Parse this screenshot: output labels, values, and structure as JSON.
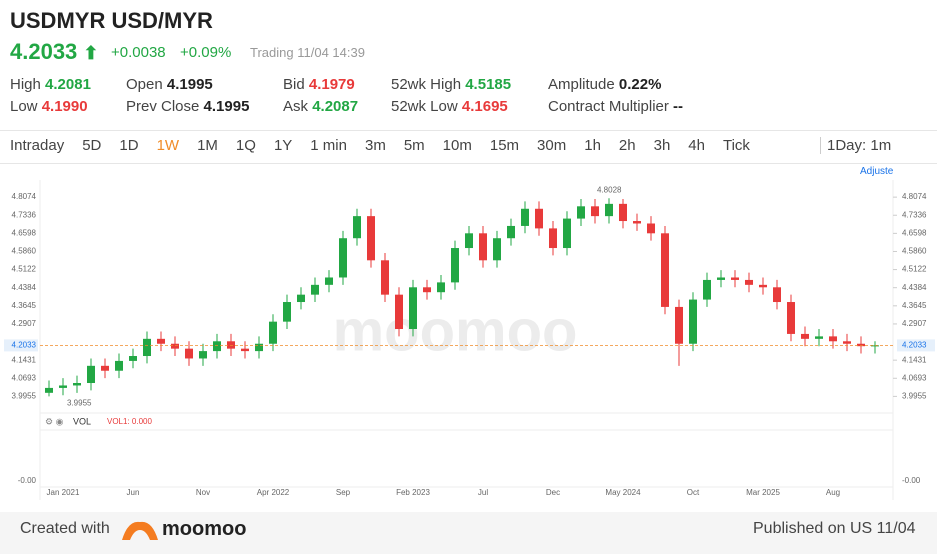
{
  "quote": {
    "symbol": "USDMYR USD/MYR",
    "price": "4.2033",
    "change": "+0.0038",
    "change_pct": "+0.09%",
    "status": "Trading",
    "time": "11/04 14:39"
  },
  "stats": [
    {
      "label": "High",
      "value": "4.2081",
      "tone": "up"
    },
    {
      "label": "Open",
      "value": "4.1995",
      "tone": "flat"
    },
    {
      "label": "Bid",
      "value": "4.1979",
      "tone": "down"
    },
    {
      "label": "52wk High",
      "value": "4.5185",
      "tone": "up"
    },
    {
      "label": "Amplitude",
      "value": "0.22%",
      "tone": "flat"
    },
    {
      "label": "Low",
      "value": "4.1990",
      "tone": "down"
    },
    {
      "label": "Prev Close",
      "value": "4.1995",
      "tone": "flat"
    },
    {
      "label": "Ask",
      "value": "4.2087",
      "tone": "up"
    },
    {
      "label": "52wk Low",
      "value": "4.1695",
      "tone": "down"
    },
    {
      "label": "Contract Multiplier",
      "value": "--",
      "tone": "flat"
    }
  ],
  "tabs": [
    "Intraday",
    "5D",
    "1D",
    "1W",
    "1M",
    "1Q",
    "1Y",
    "1 min",
    "3m",
    "5m",
    "10m",
    "15m",
    "30m",
    "1h",
    "2h",
    "3h",
    "4h",
    "Tick"
  ],
  "active_tab": "1W",
  "tab_extra": "1Day: 1m",
  "adjust_label": "Adjuste",
  "footer": {
    "created": "Created with",
    "brand": "moomoo",
    "published": "Published on US 11/04"
  },
  "chart_data": {
    "type": "candlestick",
    "watermark": "moomoo",
    "up_color": "#22a744",
    "down_color": "#e83a3a",
    "categories": [
      null,
      "Jan 2021",
      null,
      null,
      null,
      null,
      "Jun",
      null,
      null,
      null,
      null,
      "Nov",
      null,
      null,
      null,
      null,
      "Apr 2022",
      null,
      null,
      null,
      null,
      "Sep",
      null,
      null,
      null,
      null,
      "Feb 2023",
      null,
      null,
      null,
      null,
      "Jul",
      null,
      null,
      null,
      null,
      "Dec",
      null,
      null,
      null,
      null,
      "May 2024",
      null,
      null,
      null,
      null,
      "Oct",
      null,
      null,
      null,
      null,
      "Mar 2025",
      null,
      null,
      null,
      null,
      "Aug",
      null,
      null,
      null
    ],
    "open": [
      4.01,
      4.03,
      4.04,
      4.05,
      4.12,
      4.1,
      4.14,
      4.16,
      4.23,
      4.21,
      4.19,
      4.15,
      4.18,
      4.22,
      4.19,
      4.18,
      4.21,
      4.3,
      4.38,
      4.41,
      4.45,
      4.48,
      4.64,
      4.73,
      4.55,
      4.41,
      4.27,
      4.44,
      4.42,
      4.46,
      4.6,
      4.66,
      4.55,
      4.64,
      4.69,
      4.76,
      4.68,
      4.6,
      4.72,
      4.77,
      4.73,
      4.78,
      4.71,
      4.7,
      4.66,
      4.36,
      4.21,
      4.39,
      4.47,
      4.48,
      4.47,
      4.45,
      4.44,
      4.38,
      4.25,
      4.23,
      4.24,
      4.22,
      4.21,
      4.2
    ],
    "high": [
      4.06,
      4.07,
      4.08,
      4.15,
      4.15,
      4.17,
      4.19,
      4.26,
      4.26,
      4.24,
      4.22,
      4.21,
      4.25,
      4.25,
      4.22,
      4.24,
      4.33,
      4.41,
      4.44,
      4.48,
      4.51,
      4.67,
      4.76,
      4.76,
      4.58,
      4.44,
      4.47,
      4.47,
      4.49,
      4.63,
      4.69,
      4.69,
      4.67,
      4.72,
      4.79,
      4.79,
      4.71,
      4.75,
      4.8,
      4.8,
      4.8028,
      4.8,
      4.74,
      4.73,
      4.69,
      4.39,
      4.42,
      4.5,
      4.51,
      4.51,
      4.5,
      4.48,
      4.47,
      4.41,
      4.28,
      4.27,
      4.27,
      4.25,
      4.24,
      4.22
    ],
    "low": [
      3.9955,
      4.0,
      4.01,
      4.02,
      4.07,
      4.07,
      4.11,
      4.13,
      4.18,
      4.16,
      4.12,
      4.12,
      4.15,
      4.16,
      4.15,
      4.15,
      4.18,
      4.27,
      4.35,
      4.38,
      4.42,
      4.45,
      4.61,
      4.52,
      4.38,
      4.24,
      4.24,
      4.39,
      4.39,
      4.43,
      4.57,
      4.52,
      4.52,
      4.61,
      4.66,
      4.65,
      4.57,
      4.57,
      4.69,
      4.7,
      4.7,
      4.68,
      4.67,
      4.63,
      4.33,
      4.12,
      4.18,
      4.36,
      4.44,
      4.44,
      4.42,
      4.41,
      4.35,
      4.22,
      4.2,
      4.2,
      4.19,
      4.18,
      4.17,
      4.17
    ],
    "close": [
      4.03,
      4.04,
      4.05,
      4.12,
      4.1,
      4.14,
      4.16,
      4.23,
      4.21,
      4.19,
      4.15,
      4.18,
      4.22,
      4.19,
      4.18,
      4.21,
      4.3,
      4.38,
      4.41,
      4.45,
      4.48,
      4.64,
      4.73,
      4.55,
      4.41,
      4.27,
      4.44,
      4.42,
      4.46,
      4.6,
      4.66,
      4.55,
      4.64,
      4.69,
      4.76,
      4.68,
      4.6,
      4.72,
      4.77,
      4.73,
      4.78,
      4.71,
      4.7,
      4.66,
      4.36,
      4.21,
      4.39,
      4.47,
      4.48,
      4.47,
      4.45,
      4.44,
      4.38,
      4.25,
      4.23,
      4.24,
      4.22,
      4.21,
      4.2,
      4.2033
    ],
    "last_price": 4.2033,
    "ylim": [
      3.94,
      4.865
    ],
    "yticks": [
      4.8074,
      4.7336,
      {
        "value": 4.6598,
        "label": "4.6598"
      },
      {
        "value": 4.586,
        "label": "4.5860"
      },
      4.5122,
      4.4384,
      4.3645,
      4.2907,
      4.1431,
      4.0693,
      3.9955
    ],
    "grid": false,
    "volume": {
      "title": "VOL",
      "value_label": "VOL1: 0.000",
      "tick_label": "-0.00"
    }
  }
}
